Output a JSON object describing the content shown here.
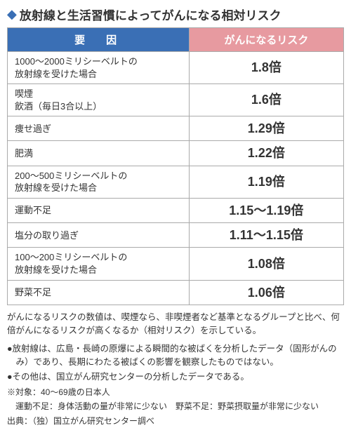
{
  "title": "放射線と生活習慣によってがんになる相対リスク",
  "colors": {
    "accent_blue": "#3a6fb5",
    "accent_pink": "#e79aa0",
    "border": "#aaaaaa",
    "text": "#333333",
    "background": "#ffffff"
  },
  "table": {
    "header_factor": "要　因",
    "header_risk": "がんになるリスク",
    "rows": [
      {
        "factor": "1000〜2000ミリシーベルトの\n放射線を受けた場合",
        "risk": "1.8倍"
      },
      {
        "factor": "喫煙\n飲酒（毎日3合以上）",
        "risk": "1.6倍"
      },
      {
        "factor": "痩せ過ぎ",
        "risk": "1.29倍"
      },
      {
        "factor": "肥満",
        "risk": "1.22倍"
      },
      {
        "factor": "200〜500ミリシーベルトの\n放射線を受けた場合",
        "risk": "1.19倍"
      },
      {
        "factor": "運動不足",
        "risk": "1.15〜1.19倍"
      },
      {
        "factor": "塩分の取り過ぎ",
        "risk": "1.11〜1.15倍"
      },
      {
        "factor": "100〜200ミリシーベルトの\n放射線を受けた場合",
        "risk": "1.08倍"
      },
      {
        "factor": "野菜不足",
        "risk": "1.06倍"
      }
    ]
  },
  "notes": {
    "lead": "がんになるリスクの数値は、喫煙なら、非喫煙者など基準となるグループと比べ、何倍がんになるリスクが高くなるか（相対リスク）を示している。",
    "b1": "●放射線は、広島・長崎の原爆による瞬間的な被ばくを分析したデータ（固形がんのみ）であり、長期にわたる被ばくの影響を観察したものではない。",
    "b2": "●その他は、国立がん研究センターの分析したデータである。",
    "note1": "※対象：40〜69歳の日本人",
    "note2": "　運動不足：身体活動の量が非常に少ない　野菜不足：野菜摂取量が非常に少ない",
    "source": "出典：（独）国立がん研究センター調べ"
  }
}
